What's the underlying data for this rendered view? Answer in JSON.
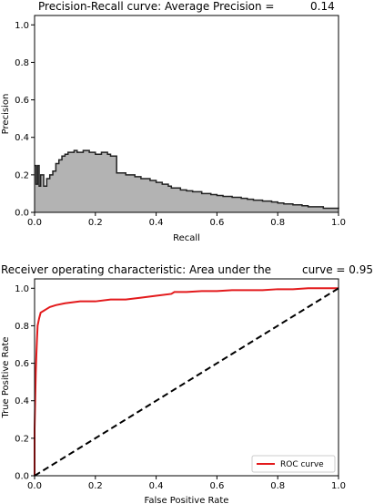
{
  "chart_data": [
    {
      "type": "area",
      "title": "Precision-Recall curve: Average Precision =",
      "title_value": "0.14",
      "xlabel": "Recall",
      "ylabel": "Precision",
      "xlim": [
        0.0,
        1.0
      ],
      "ylim": [
        0.0,
        1.05
      ],
      "xticks": [
        "0.0",
        "0.2",
        "0.4",
        "0.6",
        "0.8",
        "1.0"
      ],
      "yticks": [
        "0.0",
        "0.2",
        "0.4",
        "0.6",
        "0.8",
        "1.0"
      ],
      "grid": false,
      "fill_color": "#b3b3b3",
      "line_color": "#222222",
      "series": [
        {
          "x": [
            0.0,
            0.005,
            0.01,
            0.015,
            0.02,
            0.03,
            0.04,
            0.05,
            0.06,
            0.07,
            0.08,
            0.09,
            0.1,
            0.11,
            0.12,
            0.13,
            0.14,
            0.16,
            0.18,
            0.2,
            0.22,
            0.24,
            0.25,
            0.26,
            0.27,
            0.3,
            0.33,
            0.35,
            0.38,
            0.4,
            0.42,
            0.44,
            0.45,
            0.48,
            0.5,
            0.52,
            0.55,
            0.58,
            0.6,
            0.62,
            0.65,
            0.68,
            0.7,
            0.72,
            0.75,
            0.78,
            0.8,
            0.82,
            0.85,
            0.88,
            0.9,
            0.95,
            1.0
          ],
          "y": [
            0.25,
            0.15,
            0.25,
            0.14,
            0.2,
            0.14,
            0.18,
            0.2,
            0.22,
            0.26,
            0.28,
            0.3,
            0.31,
            0.32,
            0.32,
            0.33,
            0.32,
            0.33,
            0.32,
            0.31,
            0.32,
            0.31,
            0.3,
            0.3,
            0.21,
            0.2,
            0.19,
            0.18,
            0.17,
            0.16,
            0.15,
            0.14,
            0.13,
            0.12,
            0.115,
            0.11,
            0.1,
            0.095,
            0.09,
            0.085,
            0.08,
            0.075,
            0.07,
            0.065,
            0.06,
            0.055,
            0.05,
            0.045,
            0.04,
            0.035,
            0.03,
            0.022,
            0.02
          ]
        }
      ]
    },
    {
      "type": "line",
      "title_left": "Receiver operating characteristic: Area under the",
      "title_right": "curve = 0.95",
      "xlabel": "False Positive Rate",
      "ylabel": "True Positive Rate",
      "xlim": [
        0.0,
        1.0
      ],
      "ylim": [
        0.0,
        1.05
      ],
      "xticks": [
        "0.0",
        "0.2",
        "0.4",
        "0.6",
        "0.8",
        "1.0"
      ],
      "yticks": [
        "0.0",
        "0.2",
        "0.4",
        "0.6",
        "0.8",
        "1.0"
      ],
      "grid": false,
      "legend": "lower right",
      "series": [
        {
          "name": "ROC curve",
          "color": "#e31a1c",
          "x": [
            0.0,
            0.0,
            0.002,
            0.004,
            0.006,
            0.008,
            0.01,
            0.015,
            0.02,
            0.03,
            0.04,
            0.05,
            0.07,
            0.1,
            0.15,
            0.2,
            0.25,
            0.3,
            0.35,
            0.4,
            0.45,
            0.46,
            0.5,
            0.55,
            0.6,
            0.65,
            0.7,
            0.75,
            0.8,
            0.85,
            0.9,
            0.95,
            1.0
          ],
          "y": [
            0.0,
            0.25,
            0.4,
            0.55,
            0.65,
            0.73,
            0.8,
            0.84,
            0.87,
            0.88,
            0.89,
            0.9,
            0.91,
            0.92,
            0.93,
            0.93,
            0.94,
            0.94,
            0.95,
            0.96,
            0.97,
            0.98,
            0.98,
            0.985,
            0.985,
            0.99,
            0.99,
            0.99,
            0.995,
            0.995,
            1.0,
            1.0,
            1.0
          ]
        },
        {
          "name": "",
          "color": "#000000",
          "dashed": true,
          "x": [
            0.0,
            1.0
          ],
          "y": [
            0.0,
            1.0
          ]
        }
      ]
    }
  ]
}
